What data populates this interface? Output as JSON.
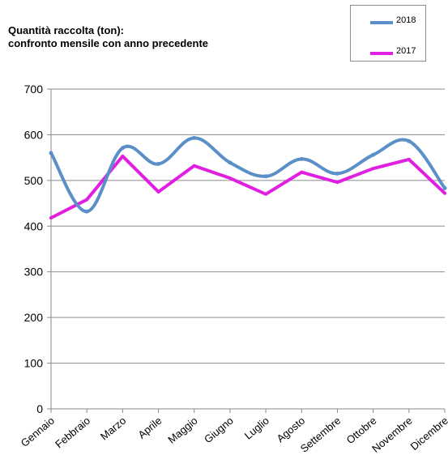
{
  "chart_data": {
    "type": "line",
    "title": "Quantità raccolta (ton):",
    "subtitle": "confronto mensile con anno precedente",
    "categories": [
      "Gennaio",
      "Febbraio",
      "Marzo",
      "Aprile",
      "Maggio",
      "Giugno",
      "Luglio",
      "Agosto",
      "Settembre",
      "Ottobre",
      "Novembre",
      "Dicembre"
    ],
    "series": [
      {
        "name": "2018",
        "color": "#5b8fc7",
        "smooth": true,
        "values": [
          560,
          432,
          571,
          536,
          593,
          539,
          509,
          547,
          515,
          556,
          586,
          483
        ]
      },
      {
        "name": "2017",
        "color": "#e01fe0",
        "smooth": false,
        "values": [
          418,
          458,
          553,
          475,
          532,
          505,
          470,
          518,
          496,
          526,
          546,
          472
        ]
      }
    ],
    "ylim": [
      0,
      700
    ],
    "yticks": [
      0,
      100,
      200,
      300,
      400,
      500,
      600,
      700
    ],
    "grid": true,
    "legend_position": "top-right"
  }
}
